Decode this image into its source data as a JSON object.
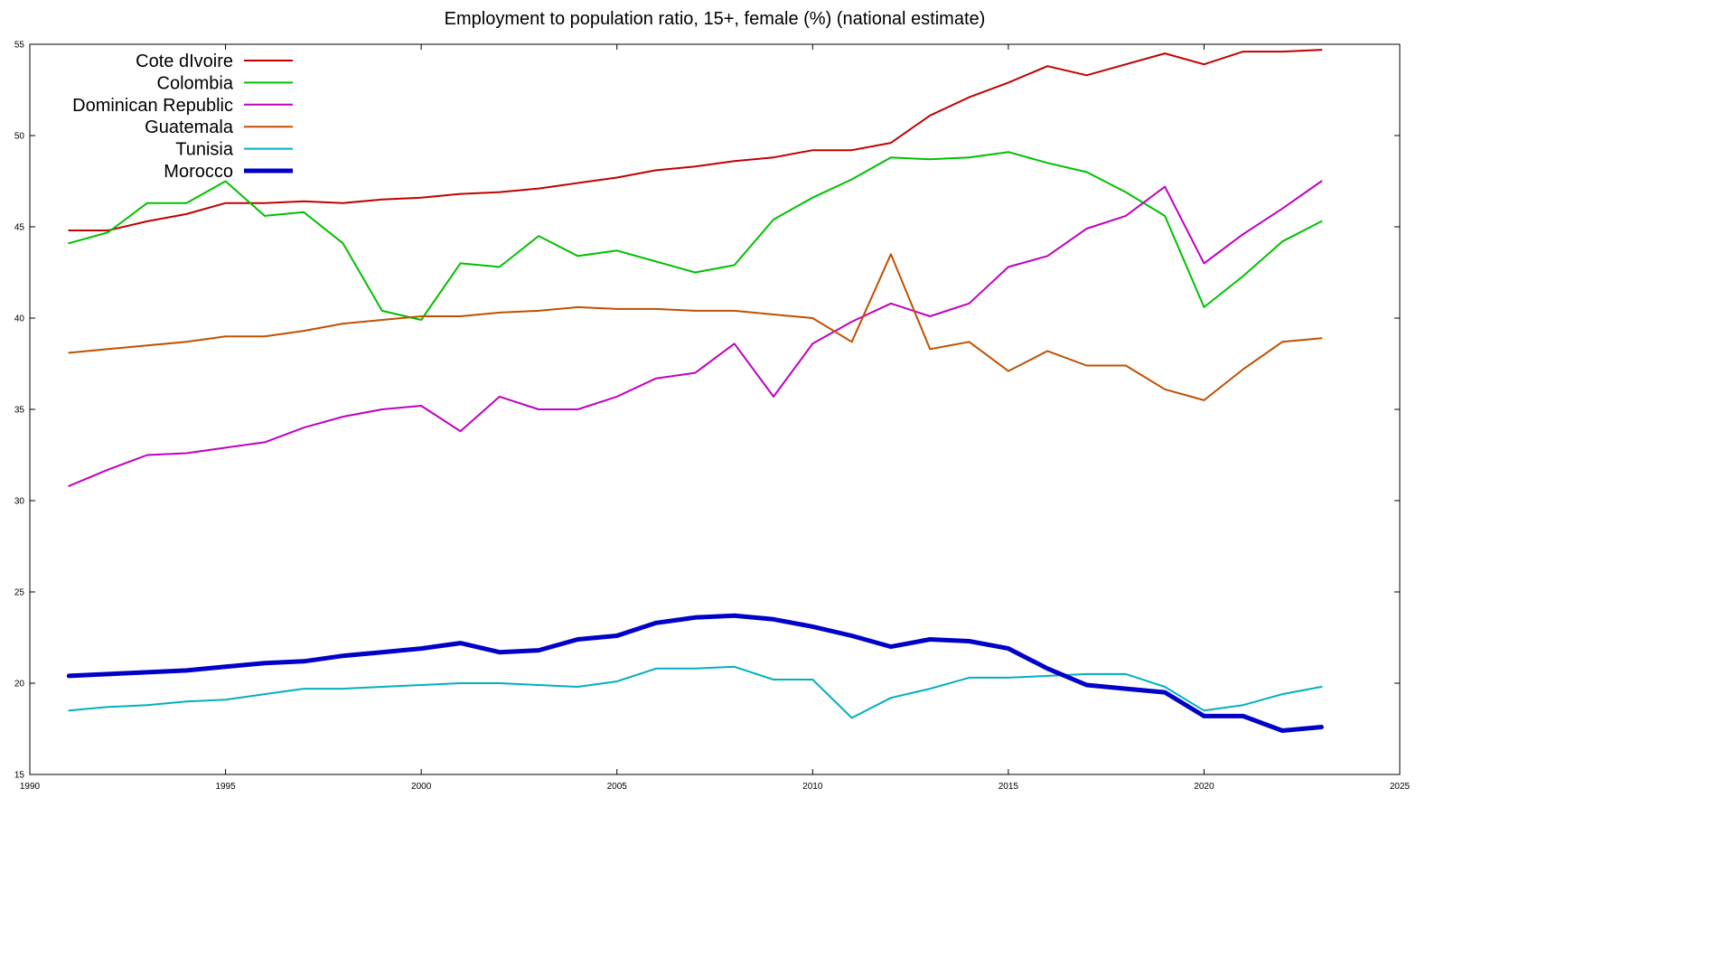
{
  "chart_data": {
    "type": "line",
    "title": "Employment to population ratio, 15+, female (%) (national estimate)",
    "xlabel": "",
    "ylabel": "",
    "xlim": [
      1990,
      2025
    ],
    "ylim": [
      15,
      55
    ],
    "x_ticks": [
      1990,
      1995,
      2000,
      2005,
      2010,
      2015,
      2020,
      2025
    ],
    "y_ticks": [
      15,
      20,
      25,
      30,
      35,
      40,
      45,
      50,
      55
    ],
    "grid": false,
    "legend_position": "top-left",
    "x": [
      1991,
      1992,
      1993,
      1994,
      1995,
      1996,
      1997,
      1998,
      1999,
      2000,
      2001,
      2002,
      2003,
      2004,
      2005,
      2006,
      2007,
      2008,
      2009,
      2010,
      2011,
      2012,
      2013,
      2014,
      2015,
      2016,
      2017,
      2018,
      2019,
      2020,
      2021,
      2022,
      2023
    ],
    "series": [
      {
        "name": "Cote dIvoire",
        "color": "#c00000",
        "width": 2,
        "values": [
          44.8,
          44.8,
          45.3,
          45.7,
          46.3,
          46.3,
          46.4,
          46.3,
          46.5,
          46.6,
          46.8,
          46.9,
          47.1,
          47.4,
          47.7,
          48.1,
          48.3,
          48.6,
          48.8,
          49.2,
          49.2,
          49.6,
          51.1,
          52.1,
          52.9,
          53.8,
          53.3,
          53.9,
          54.5,
          53.9,
          54.6,
          54.6,
          54.7
        ]
      },
      {
        "name": "Colombia",
        "color": "#00c000",
        "width": 2,
        "values": [
          44.1,
          44.7,
          46.3,
          46.3,
          47.5,
          45.6,
          45.8,
          44.1,
          40.4,
          39.9,
          43.0,
          42.8,
          44.5,
          43.4,
          43.7,
          43.1,
          42.5,
          42.9,
          45.4,
          46.6,
          47.6,
          48.8,
          48.7,
          48.8,
          49.1,
          48.5,
          48.0,
          46.9,
          45.6,
          40.6,
          42.3,
          44.2,
          45.3
        ]
      },
      {
        "name": "Dominican Republic",
        "color": "#c000c0",
        "width": 2,
        "values": [
          30.8,
          31.7,
          32.5,
          32.6,
          32.9,
          33.2,
          34.0,
          34.6,
          35.0,
          35.2,
          33.8,
          35.7,
          35.0,
          35.0,
          35.7,
          36.7,
          37.0,
          38.6,
          35.7,
          38.6,
          39.8,
          40.8,
          40.1,
          40.8,
          42.8,
          43.4,
          44.9,
          45.6,
          47.2,
          43.0,
          44.6,
          46.0,
          47.5
        ]
      },
      {
        "name": "Guatemala",
        "color": "#c05000",
        "width": 2,
        "values": [
          38.1,
          38.3,
          38.5,
          38.7,
          39.0,
          39.0,
          39.3,
          39.7,
          39.9,
          40.1,
          40.1,
          40.3,
          40.4,
          40.6,
          40.5,
          40.5,
          40.4,
          40.4,
          40.2,
          40.0,
          38.7,
          43.5,
          38.3,
          38.7,
          37.1,
          38.2,
          37.4,
          37.4,
          36.1,
          35.5,
          37.2,
          38.7,
          38.9
        ]
      },
      {
        "name": "Tunisia",
        "color": "#00b0c0",
        "width": 2,
        "values": [
          18.5,
          18.7,
          18.8,
          19.0,
          19.1,
          19.4,
          19.7,
          19.7,
          19.8,
          19.9,
          20.0,
          20.0,
          19.9,
          19.8,
          20.1,
          20.8,
          20.8,
          20.9,
          20.2,
          20.2,
          18.1,
          19.2,
          19.7,
          20.3,
          20.3,
          20.4,
          20.5,
          20.5,
          19.8,
          18.5,
          18.8,
          19.4,
          19.8
        ]
      },
      {
        "name": "Morocco",
        "color": "#0000c8",
        "width": 5,
        "values": [
          20.4,
          20.5,
          20.6,
          20.7,
          20.9,
          21.1,
          21.2,
          21.5,
          21.7,
          21.9,
          22.2,
          21.7,
          21.8,
          22.4,
          22.6,
          23.3,
          23.6,
          23.7,
          23.5,
          23.1,
          22.6,
          22.0,
          22.4,
          22.3,
          21.9,
          20.8,
          19.9,
          19.7,
          19.5,
          18.2,
          18.2,
          17.4,
          17.6
        ]
      }
    ]
  }
}
